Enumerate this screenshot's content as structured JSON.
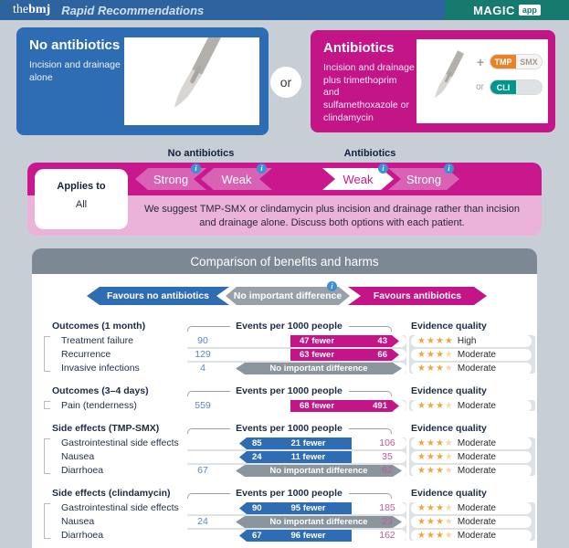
{
  "header": {
    "brand_prefix": "the",
    "brand_name": "bmj",
    "subtitle": "Rapid Recommendations",
    "magic_label": "MAGIC",
    "app_badge": "app"
  },
  "options": {
    "or_divider": "or",
    "no_antibiotics": {
      "title": "No antibiotics",
      "description": "Incision and drainage alone"
    },
    "antibiotics": {
      "title": "Antibiotics",
      "description": "Incision and drainage plus trimethoprim and sulfamethoxazole or clindamycin",
      "plus_sign": "+",
      "or_label": "or",
      "pill_tmp": "TMP",
      "pill_smx": "SMX",
      "pill_cli": "CLI"
    }
  },
  "recommendation": {
    "left_column_label": "No antibiotics",
    "right_column_label": "Antibiotics",
    "applies_to_label": "Applies to",
    "applies_to_value": "All",
    "arrows": [
      {
        "label": "Strong",
        "direction": "left",
        "selected": false
      },
      {
        "label": "Weak",
        "direction": "left",
        "selected": false
      },
      {
        "label": "Weak",
        "direction": "right",
        "selected": true
      },
      {
        "label": "Strong",
        "direction": "right",
        "selected": false
      }
    ],
    "statement": "We suggest TMP-SMX or clindamycin plus incision and drainage rather than incision and drainage alone. Discuss both options with each patient."
  },
  "comparison": {
    "title": "Comparison of benefits and harms",
    "legend": {
      "favours_left": "Favours no antibiotics",
      "middle": "No important difference",
      "favours_right": "Favours antibiotics"
    },
    "events_header": "Events per 1000 people",
    "evidence_header": "Evidence quality",
    "groups": [
      {
        "label": "Outcomes (1 month)",
        "rows": [
          {
            "outcome": "Treatment failure",
            "left": "90",
            "type": "favours-antibiotics",
            "arrow": "47 fewer",
            "right": "43",
            "stars": 4,
            "quality": "High"
          },
          {
            "outcome": "Recurrence",
            "left": "129",
            "type": "favours-antibiotics",
            "arrow": "63 fewer",
            "right": "66",
            "stars": 3,
            "quality": "Moderate"
          },
          {
            "outcome": "Invasive infections",
            "left": "4",
            "type": "no-difference",
            "arrow": "No important difference",
            "right": "",
            "stars": 3,
            "quality": "Moderate"
          }
        ]
      },
      {
        "label": "Outcomes (3–4 days)",
        "rows": [
          {
            "outcome": "Pain (tenderness)",
            "left": "559",
            "type": "favours-antibiotics",
            "arrow": "68 fewer",
            "right": "491",
            "stars": 3,
            "quality": "Moderate"
          }
        ]
      },
      {
        "label": "Side effects (TMP-SMX)",
        "rows": [
          {
            "outcome": "Gastrointestinal side effects",
            "left": "85",
            "type": "favours-no-antibiotics",
            "arrow": "21 fewer",
            "right": "106",
            "stars": 3,
            "quality": "Moderate"
          },
          {
            "outcome": "Nausea",
            "left": "24",
            "type": "favours-no-antibiotics",
            "arrow": "11 fewer",
            "right": "35",
            "stars": 3,
            "quality": "Moderate"
          },
          {
            "outcome": "Diarrhoea",
            "left": "67",
            "type": "no-difference",
            "arrow": "No important difference",
            "right": "62",
            "stars": 3,
            "quality": "Moderate"
          }
        ]
      },
      {
        "label": "Side effects (clindamycin)",
        "rows": [
          {
            "outcome": "Gastrointestinal side effects",
            "left": "90",
            "type": "favours-no-antibiotics",
            "arrow": "95 fewer",
            "right": "185",
            "stars": 3,
            "quality": "Moderate"
          },
          {
            "outcome": "Nausea",
            "left": "24",
            "type": "no-difference",
            "arrow": "No important difference",
            "right": "23",
            "stars": 3,
            "quality": "Moderate"
          },
          {
            "outcome": "Diarrhoea",
            "left": "67",
            "type": "favours-no-antibiotics",
            "arrow": "96 fewer",
            "right": "162",
            "stars": 3,
            "quality": "Moderate"
          }
        ]
      }
    ]
  },
  "colors": {
    "header_blue": "#2d639f",
    "header_teal": "#177a6f",
    "page_background": "#c7ced6",
    "option_blue": "#2e6db4",
    "option_magenta": "#c41588",
    "strip_magenta": "#c9188e",
    "strip_pink": "#ecb3da",
    "arrow_light_pink": "#d863b4",
    "panel_header_slate": "#7c8894",
    "no_difference_gray": "#8a959e",
    "star_orange": "#f2a33c",
    "star_faded": "#f3d9a8",
    "pill_tmp_orange": "#e8832a",
    "pill_cli_teal": "#00968e",
    "info_blue": "#3f8fd6"
  }
}
